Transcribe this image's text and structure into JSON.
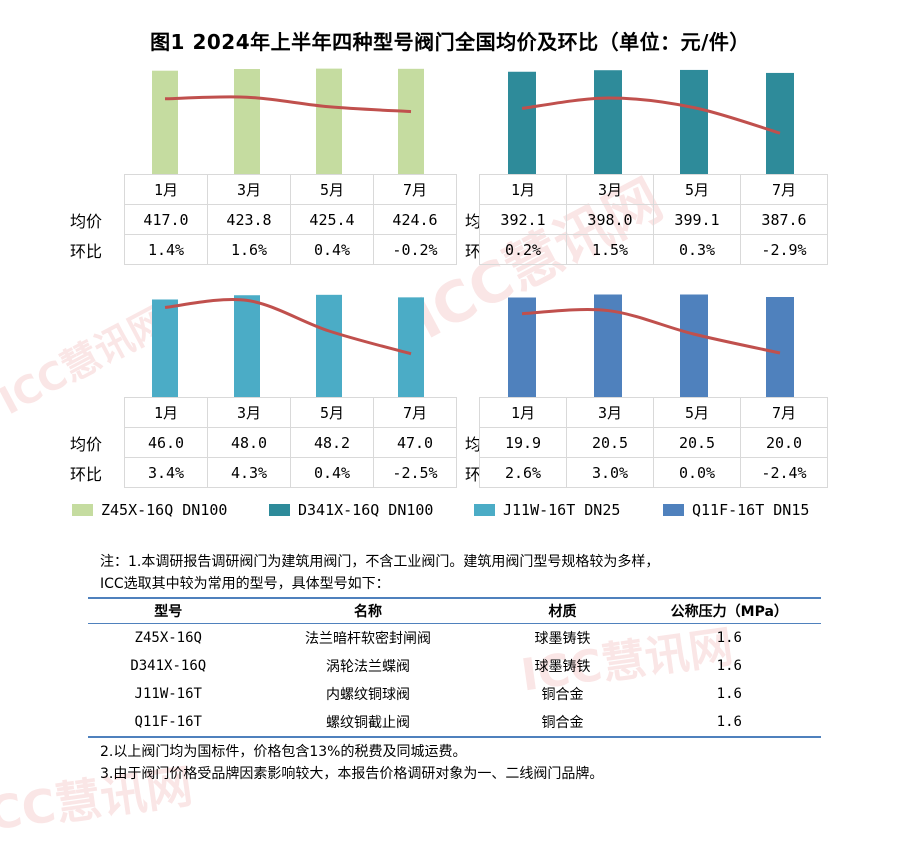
{
  "title": "图1 2024年上半年四种型号阀门全国均价及环比（单位：元/件）",
  "row_labels": {
    "price": "均价",
    "mom": "环比"
  },
  "chart_data": [
    {
      "type": "bar",
      "series_name": "Z45X-16Q DN100",
      "color": "#c5dca0",
      "categories": [
        "1月",
        "3月",
        "5月",
        "7月"
      ],
      "values": [
        417.0,
        423.8,
        425.4,
        424.6
      ],
      "mom_labels": [
        "1.4%",
        "1.6%",
        "0.4%",
        "-0.2%"
      ],
      "mom_values": [
        1.4,
        1.6,
        0.4,
        -0.2
      ],
      "value_labels": [
        "417.0",
        "423.8",
        "425.4",
        "424.6"
      ],
      "ylim": [
        0,
        440
      ],
      "mom_lim": [
        -8,
        6
      ]
    },
    {
      "type": "bar",
      "series_name": "D341X-16Q DN100",
      "color": "#2e8b9a",
      "categories": [
        "1月",
        "3月",
        "5月",
        "7月"
      ],
      "values": [
        392.1,
        398.0,
        399.1,
        387.6
      ],
      "mom_labels": [
        "0.2%",
        "1.5%",
        "0.3%",
        "-2.9%"
      ],
      "mom_values": [
        0.2,
        1.5,
        0.3,
        -2.9
      ],
      "value_labels": [
        "392.1",
        "398.0",
        "399.1",
        "387.6"
      ],
      "ylim": [
        0,
        418
      ],
      "mom_lim": [
        -8,
        6
      ]
    },
    {
      "type": "bar",
      "series_name": "J11W-16T DN25",
      "color": "#4bacc6",
      "categories": [
        "1月",
        "3月",
        "5月",
        "7月"
      ],
      "values": [
        46.0,
        48.0,
        48.2,
        47.0
      ],
      "mom_labels": [
        "3.4%",
        "4.3%",
        "0.4%",
        "-2.5%"
      ],
      "mom_values": [
        3.4,
        4.3,
        0.4,
        -2.5
      ],
      "value_labels": [
        "46.0",
        "48.0",
        "48.2",
        "47.0"
      ],
      "ylim": [
        0,
        50
      ],
      "mom_lim": [
        -8,
        6
      ]
    },
    {
      "type": "bar",
      "series_name": "Q11F-16T DN15",
      "color": "#4f81bd",
      "categories": [
        "1月",
        "3月",
        "5月",
        "7月"
      ],
      "values": [
        19.9,
        20.5,
        20.5,
        20.0
      ],
      "mom_labels": [
        "2.6%",
        "3.0%",
        "0.0%",
        "-2.4%"
      ],
      "mom_values": [
        2.6,
        3.0,
        0.0,
        -2.4
      ],
      "value_labels": [
        "19.9",
        "20.5",
        "20.5",
        "20.0"
      ],
      "ylim": [
        0,
        21.2
      ],
      "mom_lim": [
        -8,
        6
      ]
    }
  ],
  "line_color": "#c0504d",
  "notes": {
    "line1": "注：1.本调研报告调研阀门为建筑用阀门，不含工业阀门。建筑用阀门型号规格较为多样，",
    "line2": "ICC选取其中较为常用的型号，具体型号如下：",
    "line3": "2.以上阀门均为国标件，价格包含13%的税费及同城运费。",
    "line4": "3.由于阀门价格受品牌因素影响较大，本报告价格调研对象为一、二线阀门品牌。"
  },
  "spec_table": {
    "headers": [
      "型号",
      "名称",
      "材质",
      "公称压力（MPa）"
    ],
    "rows": [
      [
        "Z45X-16Q",
        "法兰暗杆软密封闸阀",
        "球墨铸铁",
        "1.6"
      ],
      [
        "D341X-16Q",
        "涡轮法兰蝶阀",
        "球墨铸铁",
        "1.6"
      ],
      [
        "J11W-16T",
        "内螺纹铜球阀",
        "铜合金",
        "1.6"
      ],
      [
        "Q11F-16T",
        "螺纹铜截止阀",
        "铜合金",
        "1.6"
      ]
    ]
  },
  "watermark": "ICC慧讯网"
}
